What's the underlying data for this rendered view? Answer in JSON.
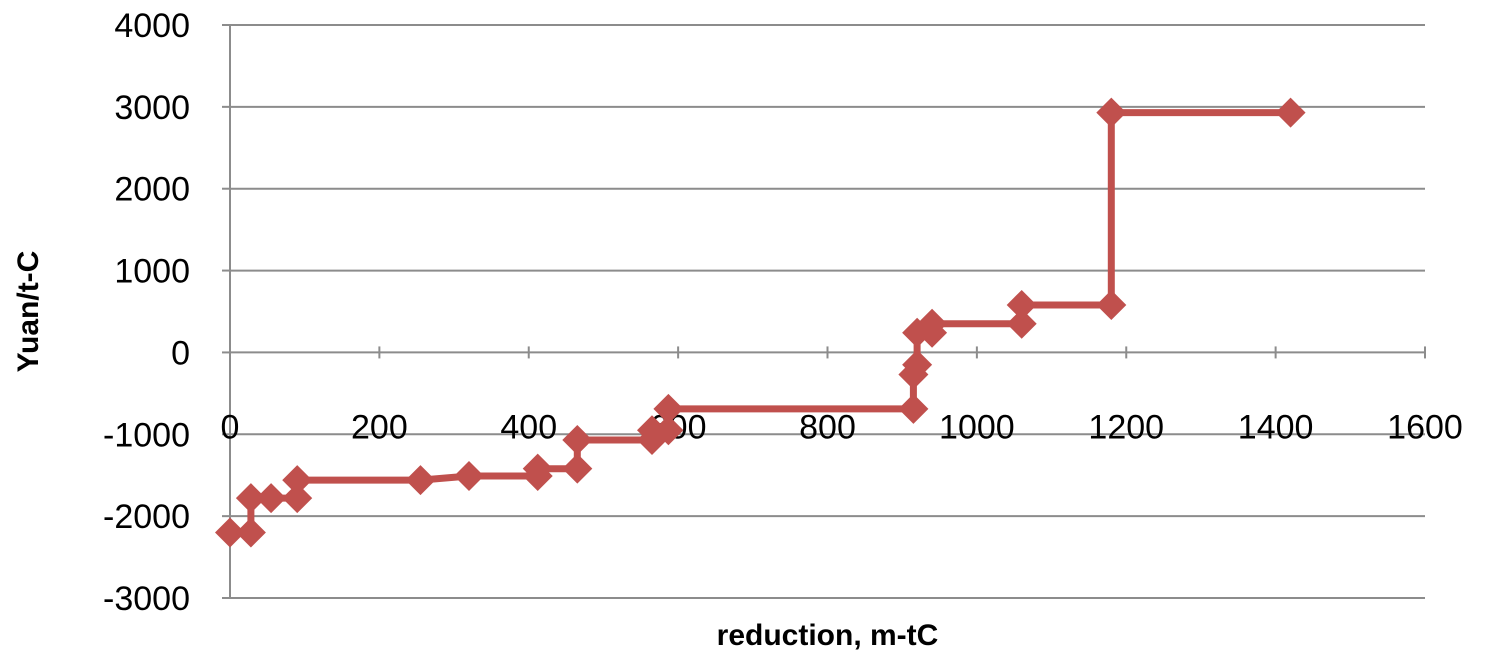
{
  "chart_data": {
    "type": "line",
    "title": "",
    "xlabel": "reduction, m-tC",
    "ylabel": "Yuan/t-C",
    "xlim": [
      0,
      1600
    ],
    "ylim": [
      -3000,
      4000
    ],
    "x_ticks": [
      0,
      200,
      400,
      600,
      800,
      1000,
      1200,
      1400,
      1600
    ],
    "y_ticks": [
      -3000,
      -2000,
      -1000,
      0,
      1000,
      2000,
      3000,
      4000
    ],
    "x_tick_labels": [
      "0",
      "200",
      "400",
      "600",
      "800",
      "1000",
      "1200",
      "1400",
      "1600"
    ],
    "y_tick_labels": [
      "-3000",
      "-2000",
      "-1000",
      "0",
      "1000",
      "2000",
      "3000",
      "4000"
    ],
    "grid": "horizontal",
    "legend": "none",
    "series": [
      {
        "color": "#c0504d",
        "marker": "diamond",
        "points": [
          {
            "x": 0,
            "y": -2200
          },
          {
            "x": 28,
            "y": -2200
          },
          {
            "x": 28,
            "y": -1780
          },
          {
            "x": 55,
            "y": -1780
          },
          {
            "x": 90,
            "y": -1780
          },
          {
            "x": 90,
            "y": -1560
          },
          {
            "x": 255,
            "y": -1560
          },
          {
            "x": 320,
            "y": -1510
          },
          {
            "x": 412,
            "y": -1510
          },
          {
            "x": 412,
            "y": -1420
          },
          {
            "x": 465,
            "y": -1420
          },
          {
            "x": 465,
            "y": -1070
          },
          {
            "x": 565,
            "y": -1070
          },
          {
            "x": 565,
            "y": -950
          },
          {
            "x": 587,
            "y": -950
          },
          {
            "x": 587,
            "y": -690
          },
          {
            "x": 915,
            "y": -690
          },
          {
            "x": 915,
            "y": -270
          },
          {
            "x": 920,
            "y": -150
          },
          {
            "x": 920,
            "y": 240
          },
          {
            "x": 940,
            "y": 240
          },
          {
            "x": 940,
            "y": 350
          },
          {
            "x": 1060,
            "y": 350
          },
          {
            "x": 1060,
            "y": 580
          },
          {
            "x": 1180,
            "y": 580
          },
          {
            "x": 1180,
            "y": 2930
          },
          {
            "x": 1420,
            "y": 2930
          }
        ]
      }
    ]
  }
}
